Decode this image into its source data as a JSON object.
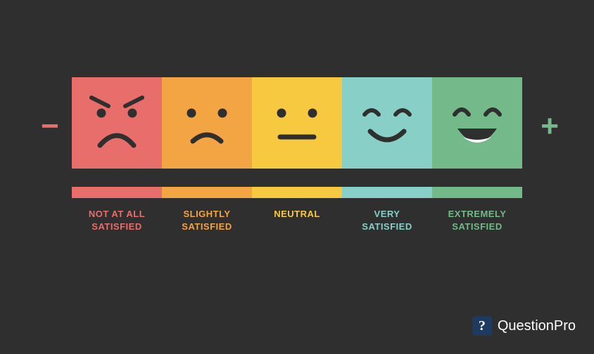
{
  "background_color": "#2f2f2f",
  "tile_size": 128,
  "face_feature_color": "#2f2f2f",
  "scale": [
    {
      "id": "not-at-all",
      "color": "#e86e6c",
      "label": "NOT AT ALL\nSATISFIED",
      "face": "angry"
    },
    {
      "id": "slightly",
      "color": "#f3a443",
      "label": "SLIGHTLY\nSATISFIED",
      "face": "sad"
    },
    {
      "id": "neutral",
      "color": "#f7c940",
      "label": "NEUTRAL",
      "face": "neutral"
    },
    {
      "id": "very",
      "color": "#87cfc7",
      "label": "VERY\nSATISFIED",
      "face": "happy"
    },
    {
      "id": "extremely",
      "color": "#73b989",
      "label": "EXTREMELY\nSATISFIED",
      "face": "laugh"
    }
  ],
  "minus_color": "#e86e6c",
  "plus_color": "#73b989",
  "minus_glyph": "−",
  "plus_glyph": "+",
  "logo": {
    "mark_bg": "#1e3a5f",
    "mark_text": "?",
    "text": "QuestionPro",
    "text_color": "#ffffff"
  }
}
